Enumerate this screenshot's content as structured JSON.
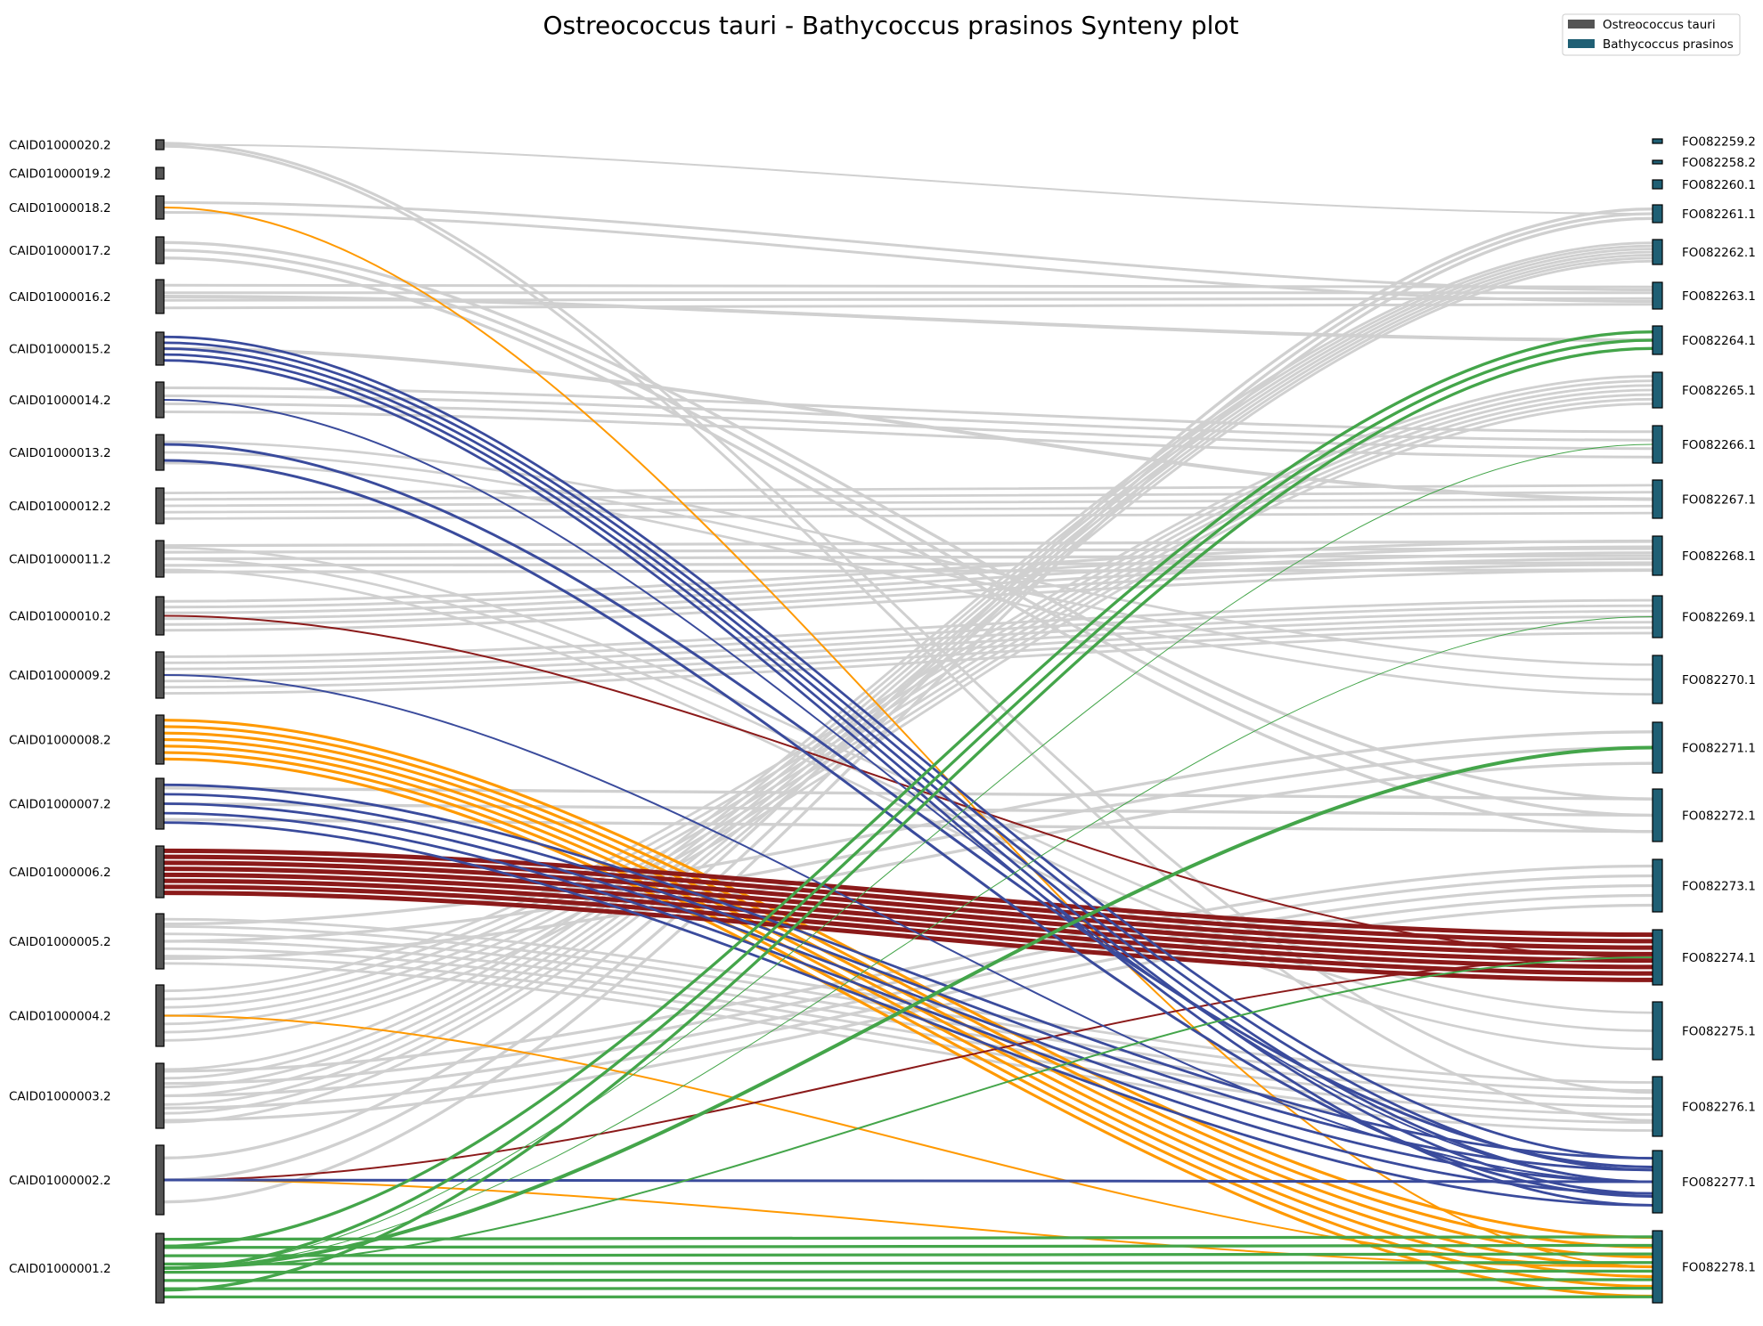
{
  "chart_data": {
    "type": "synteny",
    "title": "Ostreococcus tauri - Bathycoccus prasinos Synteny plot",
    "legend": {
      "placement": "top-right",
      "entries": [
        {
          "name": "Ostreococcus tauri",
          "color": "#545454"
        },
        {
          "name": "Bathycoccus prasinos",
          "color": "#1f5f74"
        }
      ]
    },
    "colors": {
      "link_default": "#d0d0d0",
      "blue": "#3a4b9c",
      "orange": "#ff9900",
      "red": "#8b1a1a",
      "green": "#44a54a"
    },
    "left_genome": {
      "name": "Ostreococcus tauri",
      "chromosomes": [
        "CAID01000020.2",
        "CAID01000019.2",
        "CAID01000018.2",
        "CAID01000017.2",
        "CAID01000016.2",
        "CAID01000015.2",
        "CAID01000014.2",
        "CAID01000013.2",
        "CAID01000012.2",
        "CAID01000011.2",
        "CAID01000010.2",
        "CAID01000009.2",
        "CAID01000008.2",
        "CAID01000007.2",
        "CAID01000006.2",
        "CAID01000005.2",
        "CAID01000004.2",
        "CAID01000003.2",
        "CAID01000002.2",
        "CAID01000001.2"
      ]
    },
    "right_genome": {
      "name": "Bathycoccus prasinos",
      "chromosomes": [
        "FO082259.2",
        "FO082258.2",
        "FO082260.1",
        "FO082261.1",
        "FO082262.1",
        "FO082263.1",
        "FO082264.1",
        "FO082265.1",
        "FO082266.1",
        "FO082267.1",
        "FO082268.1",
        "FO082269.1",
        "FO082270.1",
        "FO082271.1",
        "FO082272.1",
        "FO082273.1",
        "FO082274.1",
        "FO082275.1",
        "FO082276.1",
        "FO082277.1",
        "FO082278.1"
      ]
    },
    "links": [
      {
        "from": "CAID01000020.2",
        "to": "FO082276.1",
        "color": "gray",
        "width": 6
      },
      {
        "from": "CAID01000020.2",
        "to": "FO082261.1",
        "color": "gray",
        "width": 2
      },
      {
        "from": "CAID01000018.2",
        "to": "FO082263.1",
        "color": "gray",
        "width": 6
      },
      {
        "from": "CAID01000018.2",
        "to": "FO082278.1",
        "color": "orange",
        "width": 2
      },
      {
        "from": "CAID01000017.2",
        "to": "FO082272.1",
        "color": "gray",
        "width": 10
      },
      {
        "from": "CAID01000016.2",
        "to": "FO082263.1",
        "color": "gray",
        "width": 12
      },
      {
        "from": "CAID01000016.2",
        "to": "FO082264.1",
        "color": "gray",
        "width": 4
      },
      {
        "from": "CAID01000015.2",
        "to": "FO082277.1",
        "color": "blue",
        "width": 14
      },
      {
        "from": "CAID01000015.2",
        "to": "FO082267.1",
        "color": "gray",
        "width": 4
      },
      {
        "from": "CAID01000014.2",
        "to": "FO082266.1",
        "color": "gray",
        "width": 12
      },
      {
        "from": "CAID01000014.2",
        "to": "FO082277.1",
        "color": "blue",
        "width": 2
      },
      {
        "from": "CAID01000013.2",
        "to": "FO082277.1",
        "color": "blue",
        "width": 6
      },
      {
        "from": "CAID01000013.2",
        "to": "FO082270.1",
        "color": "gray",
        "width": 8
      },
      {
        "from": "CAID01000012.2",
        "to": "FO082267.1",
        "color": "gray",
        "width": 14
      },
      {
        "from": "CAID01000011.2",
        "to": "FO082268.1",
        "color": "gray",
        "width": 16
      },
      {
        "from": "CAID01000011.2",
        "to": "FO082275.1",
        "color": "gray",
        "width": 8
      },
      {
        "from": "CAID01000010.2",
        "to": "FO082268.1",
        "color": "gray",
        "width": 18
      },
      {
        "from": "CAID01000010.2",
        "to": "FO082274.1",
        "color": "red",
        "width": 2
      },
      {
        "from": "CAID01000009.2",
        "to": "FO082269.1",
        "color": "gray",
        "width": 20
      },
      {
        "from": "CAID01000009.2",
        "to": "FO082277.1",
        "color": "blue",
        "width": 2
      },
      {
        "from": "CAID01000008.2",
        "to": "FO082278.1",
        "color": "orange",
        "width": 22
      },
      {
        "from": "CAID01000007.2",
        "to": "FO082277.1",
        "color": "blue",
        "width": 14
      },
      {
        "from": "CAID01000007.2",
        "to": "FO082272.1",
        "color": "gray",
        "width": 10
      },
      {
        "from": "CAID01000006.2",
        "to": "FO082274.1",
        "color": "red",
        "width": 40
      },
      {
        "from": "CAID01000005.2",
        "to": "FO082276.1",
        "color": "gray",
        "width": 20
      },
      {
        "from": "CAID01000005.2",
        "to": "FO082271.1",
        "color": "gray",
        "width": 10
      },
      {
        "from": "CAID01000004.2",
        "to": "FO082265.1",
        "color": "gray",
        "width": 20
      },
      {
        "from": "CAID01000004.2",
        "to": "FO082278.1",
        "color": "orange",
        "width": 2
      },
      {
        "from": "CAID01000003.2",
        "to": "FO082262.1",
        "color": "gray",
        "width": 20
      },
      {
        "from": "CAID01000003.2",
        "to": "FO082273.1",
        "color": "gray",
        "width": 16
      },
      {
        "from": "CAID01000002.2",
        "to": "FO082277.1",
        "color": "blue",
        "width": 3
      },
      {
        "from": "CAID01000002.2",
        "to": "FO082261.1",
        "color": "gray",
        "width": 10
      },
      {
        "from": "CAID01000002.2",
        "to": "FO082274.1",
        "color": "red",
        "width": 2
      },
      {
        "from": "CAID01000002.2",
        "to": "FO082278.1",
        "color": "orange",
        "width": 2
      },
      {
        "from": "CAID01000001.2",
        "to": "FO082278.1",
        "color": "green",
        "width": 26
      },
      {
        "from": "CAID01000001.2",
        "to": "FO082264.1",
        "color": "green",
        "width": 10
      },
      {
        "from": "CAID01000001.2",
        "to": "FO082271.1",
        "color": "green",
        "width": 4
      },
      {
        "from": "CAID01000001.2",
        "to": "FO082274.1",
        "color": "green",
        "width": 2
      },
      {
        "from": "CAID01000001.2",
        "to": "FO082269.1",
        "color": "green",
        "width": 1
      },
      {
        "from": "CAID01000001.2",
        "to": "FO082266.1",
        "color": "green",
        "width": 1
      }
    ]
  }
}
